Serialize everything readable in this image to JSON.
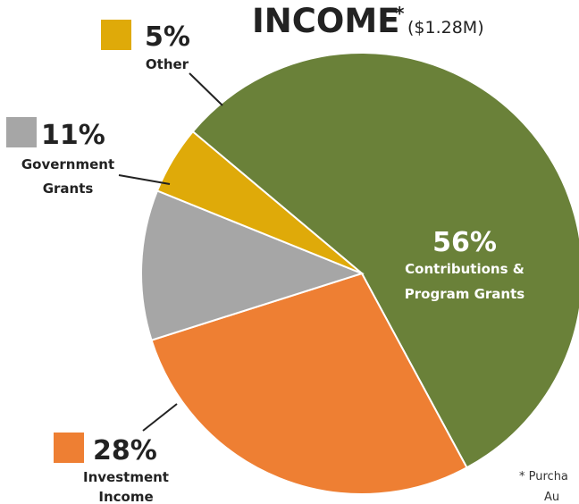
{
  "chart_data": {
    "type": "pie",
    "title": "INCOME",
    "title_mark": "*",
    "subtitle": "($1.28M)",
    "slices": [
      {
        "label_lines": [
          "Contributions &",
          "Program Grants"
        ],
        "percent_label": "56%",
        "value": 56,
        "color": "#6a8139"
      },
      {
        "label_lines": [
          "Investment",
          "Income"
        ],
        "percent_label": "28%",
        "value": 28,
        "color": "#ee7f33"
      },
      {
        "label_lines": [
          "Government",
          "Grants"
        ],
        "percent_label": "11%",
        "value": 11,
        "color": "#a6a6a6"
      },
      {
        "label_lines": [
          "Other"
        ],
        "percent_label": "5%",
        "value": 5,
        "color": "#dfaa09"
      }
    ],
    "footnote_lines": [
      "* Purcha",
      "Au"
    ]
  }
}
